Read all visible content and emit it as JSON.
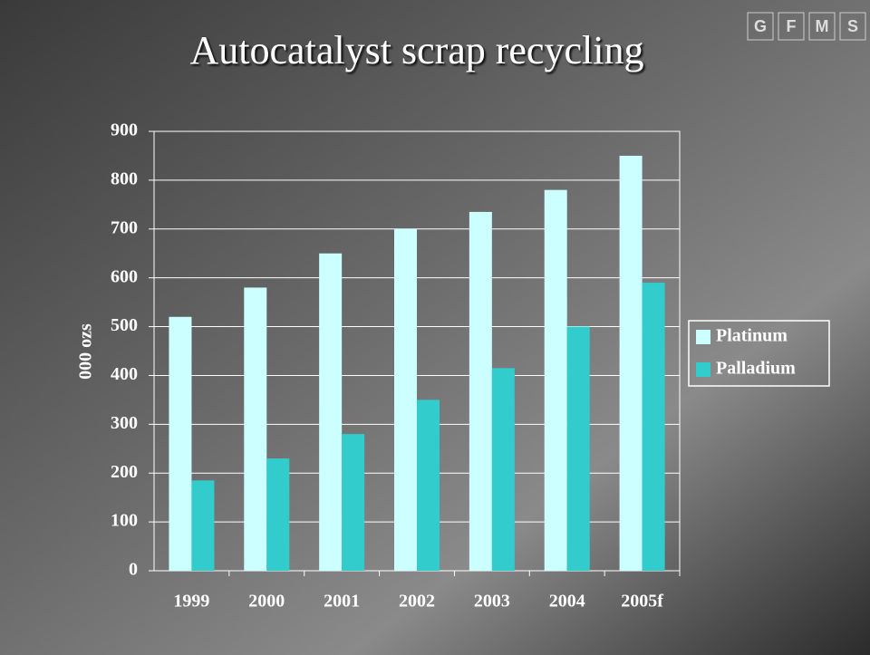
{
  "chart_data": {
    "type": "bar",
    "title": "Autocatalyst scrap recycling",
    "logo": [
      "G",
      "F",
      "M",
      "S"
    ],
    "y_label": "000 ozs",
    "categories": [
      "1999",
      "2000",
      "2001",
      "2002",
      "2003",
      "2004",
      "2005f"
    ],
    "series": [
      {
        "name": "Platinum",
        "color": "#ccffff",
        "values": [
          520,
          580,
          650,
          700,
          735,
          780,
          850
        ]
      },
      {
        "name": "Palladium",
        "color": "#33cccc",
        "values": [
          185,
          230,
          280,
          350,
          415,
          500,
          590
        ]
      }
    ],
    "ylim": [
      0,
      900
    ],
    "yticks": [
      0,
      100,
      200,
      300,
      400,
      500,
      600,
      700,
      800,
      900
    ],
    "grid": true,
    "legend": "right"
  }
}
